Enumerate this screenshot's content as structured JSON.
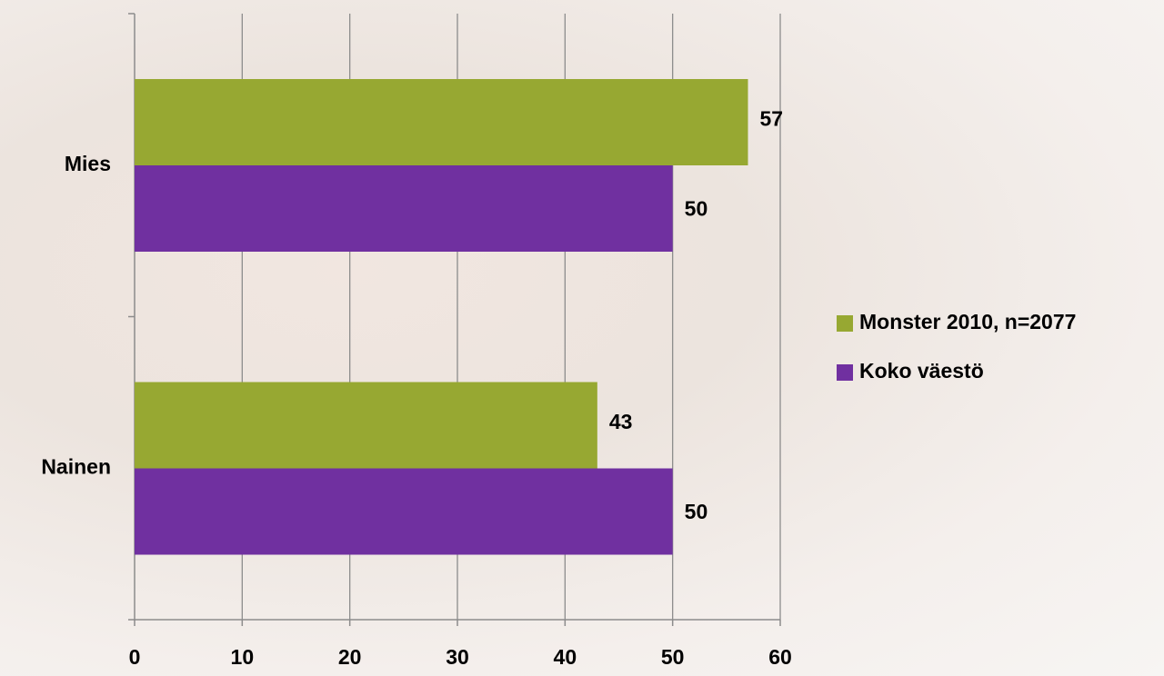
{
  "chart_data": {
    "type": "bar",
    "orientation": "horizontal",
    "categories": [
      "Mies",
      "Nainen"
    ],
    "series": [
      {
        "name": "Monster 2010, n=2077",
        "color": "#97a832",
        "values": [
          57,
          43
        ]
      },
      {
        "name": "Koko väestö",
        "color": "#7030a0",
        "values": [
          50,
          50
        ]
      }
    ],
    "xlim": [
      0,
      60
    ],
    "xticks": [
      0,
      10,
      20,
      30,
      40,
      50,
      60
    ],
    "grid": true,
    "legend": "right"
  }
}
